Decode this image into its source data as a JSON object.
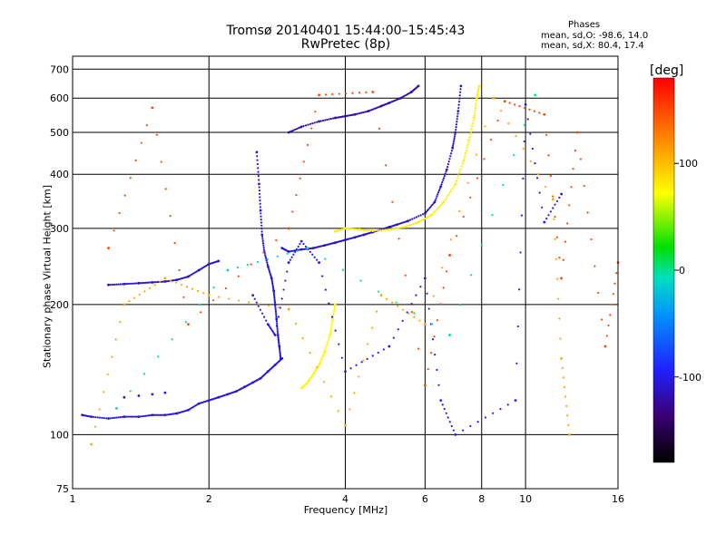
{
  "chart_data": {
    "type": "scatter",
    "title": "Tromsø 20140401 15:44:00–15:45:43",
    "subtitle": "RwPretec (8p)",
    "xlabel": "Frequency [MHz]",
    "ylabel": "Stationary phase Virtual Height [km]",
    "x_scale": "log",
    "y_scale": "log",
    "xlim": [
      1,
      16
    ],
    "ylim": [
      75,
      750
    ],
    "x_ticks": [
      "1",
      "2",
      "4",
      "6",
      "8",
      "10",
      "16"
    ],
    "x_tick_values": [
      1,
      2,
      4,
      6,
      8,
      10,
      16
    ],
    "y_ticks": [
      "75",
      "100",
      "200",
      "300",
      "400",
      "500",
      "600",
      "700"
    ],
    "y_tick_values": [
      75,
      100,
      200,
      300,
      400,
      500,
      600,
      700
    ],
    "grid": true,
    "phase_info": {
      "title": "Phases",
      "o_line": "mean, sd,O: -98.6, 14.0",
      "x_line": "mean, sd,X:  80.4, 17.4"
    },
    "colorbar": {
      "unit": "[deg]",
      "ticks": [
        "100",
        "0",
        "-100"
      ],
      "tick_values": [
        100,
        0,
        -100
      ],
      "range": [
        -180,
        180
      ]
    },
    "series": [
      {
        "phase": -105,
        "points": [
          [
            1.05,
            111
          ],
          [
            1.1,
            110
          ],
          [
            1.2,
            109
          ],
          [
            1.3,
            110
          ],
          [
            1.4,
            110
          ],
          [
            1.5,
            111
          ],
          [
            1.6,
            111
          ],
          [
            1.7,
            112
          ],
          [
            1.8,
            114
          ],
          [
            1.9,
            118
          ],
          [
            2.0,
            120
          ],
          [
            2.1,
            122
          ],
          [
            2.2,
            124
          ],
          [
            2.3,
            126
          ],
          [
            2.4,
            129
          ],
          [
            2.5,
            132
          ],
          [
            2.6,
            135
          ],
          [
            2.7,
            140
          ],
          [
            2.8,
            145
          ],
          [
            2.9,
            150
          ]
        ]
      },
      {
        "phase": -105,
        "points": [
          [
            2.55,
            450
          ],
          [
            2.58,
            380
          ],
          [
            2.6,
            330
          ],
          [
            2.62,
            290
          ],
          [
            2.65,
            265
          ],
          [
            2.7,
            245
          ],
          [
            2.75,
            230
          ],
          [
            2.78,
            215
          ],
          [
            2.8,
            200
          ],
          [
            2.82,
            185
          ],
          [
            2.84,
            170
          ],
          [
            2.86,
            160
          ],
          [
            2.88,
            150
          ]
        ]
      },
      {
        "phase": -110,
        "points": [
          [
            2.9,
            270
          ],
          [
            3.0,
            265
          ],
          [
            3.2,
            268
          ],
          [
            3.4,
            270
          ],
          [
            3.6,
            274
          ],
          [
            3.8,
            278
          ],
          [
            4.0,
            282
          ],
          [
            4.2,
            286
          ],
          [
            4.4,
            290
          ],
          [
            4.6,
            294
          ],
          [
            4.8,
            298
          ],
          [
            5.0,
            302
          ],
          [
            5.2,
            306
          ],
          [
            5.5,
            312
          ],
          [
            6.0,
            325
          ],
          [
            6.3,
            345
          ],
          [
            6.5,
            375
          ],
          [
            6.7,
            410
          ],
          [
            6.9,
            460
          ],
          [
            7.0,
            500
          ],
          [
            7.1,
            560
          ],
          [
            7.2,
            640
          ]
        ]
      },
      {
        "phase": -120,
        "points": [
          [
            3.0,
            500
          ],
          [
            3.2,
            515
          ],
          [
            3.5,
            530
          ],
          [
            3.8,
            540
          ],
          [
            4.0,
            545
          ],
          [
            4.2,
            550
          ],
          [
            4.5,
            560
          ],
          [
            4.8,
            575
          ],
          [
            5.0,
            585
          ],
          [
            5.3,
            600
          ],
          [
            5.6,
            620
          ],
          [
            5.8,
            640
          ]
        ]
      },
      {
        "phase": -110,
        "points": [
          [
            1.2,
            222
          ],
          [
            1.3,
            223
          ],
          [
            1.4,
            224
          ],
          [
            1.5,
            225
          ],
          [
            1.6,
            226
          ],
          [
            1.7,
            228
          ],
          [
            1.8,
            232
          ],
          [
            1.9,
            240
          ],
          [
            2.0,
            248
          ],
          [
            2.1,
            252
          ]
        ]
      },
      {
        "phase": -105,
        "points": [
          [
            1.3,
            122
          ],
          [
            1.4,
            123
          ],
          [
            1.5,
            124
          ],
          [
            1.6,
            125
          ]
        ]
      },
      {
        "phase": 80,
        "points": [
          [
            3.8,
            295
          ],
          [
            4.0,
            300
          ],
          [
            4.3,
            298
          ],
          [
            4.6,
            296
          ],
          [
            5.0,
            298
          ],
          [
            5.4,
            302
          ],
          [
            5.8,
            310
          ],
          [
            6.2,
            322
          ],
          [
            6.6,
            345
          ],
          [
            7.0,
            380
          ],
          [
            7.3,
            430
          ],
          [
            7.5,
            480
          ],
          [
            7.7,
            540
          ],
          [
            7.8,
            600
          ],
          [
            7.9,
            640
          ]
        ]
      },
      {
        "phase": 75,
        "points": [
          [
            3.2,
            128
          ],
          [
            3.3,
            132
          ],
          [
            3.4,
            138
          ],
          [
            3.5,
            145
          ],
          [
            3.6,
            155
          ],
          [
            3.7,
            170
          ],
          [
            3.75,
            185
          ],
          [
            3.8,
            200
          ]
        ]
      },
      {
        "phase": -100,
        "points": [
          [
            2.5,
            210
          ],
          [
            2.7,
            180
          ],
          [
            2.8,
            170
          ],
          [
            3.0,
            250
          ],
          [
            3.2,
            280
          ],
          [
            3.5,
            250
          ],
          [
            4.0,
            140
          ],
          [
            5.0,
            160
          ],
          [
            6.0,
            230
          ],
          [
            6.5,
            120
          ],
          [
            7.0,
            100
          ],
          [
            9.5,
            120
          ],
          [
            10.0,
            580
          ],
          [
            11.0,
            310
          ],
          [
            12.0,
            360
          ]
        ]
      },
      {
        "phase": 150,
        "points": [
          [
            1.2,
            270
          ],
          [
            1.5,
            570
          ],
          [
            1.8,
            180
          ],
          [
            3.0,
            300
          ],
          [
            3.5,
            610
          ],
          [
            4.6,
            620
          ],
          [
            6.0,
            130
          ],
          [
            6.8,
            260
          ],
          [
            9.0,
            590
          ],
          [
            11.0,
            550
          ],
          [
            12.0,
            230
          ],
          [
            13.0,
            500
          ],
          [
            15.0,
            160
          ],
          [
            16.0,
            250
          ]
        ]
      },
      {
        "phase": 110,
        "points": [
          [
            1.1,
            95
          ],
          [
            1.3,
            200
          ],
          [
            1.6,
            230
          ],
          [
            2.0,
            210
          ],
          [
            3.0,
            195
          ],
          [
            4.0,
            105
          ],
          [
            4.8,
            210
          ],
          [
            6.0,
            180
          ],
          [
            8.5,
            600
          ],
          [
            11.5,
            350
          ],
          [
            12.0,
            150
          ],
          [
            12.5,
            100
          ]
        ]
      },
      {
        "phase": 0,
        "points": [
          [
            1.25,
            115
          ],
          [
            2.2,
            240
          ],
          [
            3.3,
            270
          ],
          [
            6.8,
            170
          ],
          [
            10.5,
            610
          ]
        ]
      }
    ]
  }
}
